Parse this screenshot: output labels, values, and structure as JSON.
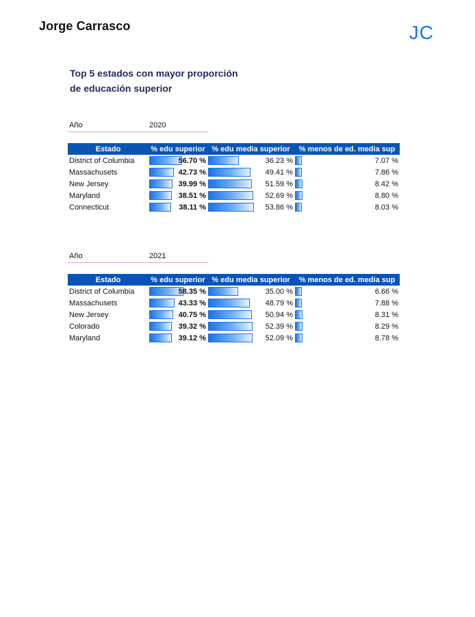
{
  "header": {
    "author": "Jorge Carrasco",
    "logo": "JC",
    "title_line1": "Top 5 estados con mayor proporción",
    "title_line2": "de educación superior"
  },
  "colors": {
    "header_bg": "#0a55b4",
    "bar": "#1a73e8",
    "logo": "#1a73e8"
  },
  "tables": [
    {
      "year_label": "Año",
      "year": "2020",
      "columns": [
        "Estado",
        "% edu superior",
        "% edu media superior",
        "% menos de ed. media sup"
      ],
      "rows": [
        {
          "state": "District of Columbia",
          "edu_sup": "56.70 %",
          "edu_sup_value": 56.7,
          "edu_media": "36.23 %",
          "edu_media_value": 36.23,
          "menos": "7.07 %",
          "menos_value": 7.07
        },
        {
          "state": "Massachusets",
          "edu_sup": "42.73 %",
          "edu_sup_value": 42.73,
          "edu_media": "49.41 %",
          "edu_media_value": 49.41,
          "menos": "7.86 %",
          "menos_value": 7.86
        },
        {
          "state": "New Jersey",
          "edu_sup": "39.99 %",
          "edu_sup_value": 39.99,
          "edu_media": "51.59 %",
          "edu_media_value": 51.59,
          "menos": "8.42 %",
          "menos_value": 8.42
        },
        {
          "state": "Maryland",
          "edu_sup": "38.51 %",
          "edu_sup_value": 38.51,
          "edu_media": "52.69 %",
          "edu_media_value": 52.69,
          "menos": "8.80 %",
          "menos_value": 8.8
        },
        {
          "state": "Connecticut",
          "edu_sup": "38.11 %",
          "edu_sup_value": 38.11,
          "edu_media": "53.86 %",
          "edu_media_value": 53.86,
          "menos": "8.03 %",
          "menos_value": 8.03
        }
      ]
    },
    {
      "year_label": "Año",
      "year": "2021",
      "columns": [
        "Estado",
        "% edu superior",
        "% edu media superior",
        "% menos de ed. media sup"
      ],
      "rows": [
        {
          "state": "District of Columbia",
          "edu_sup": "58.35 %",
          "edu_sup_value": 58.35,
          "edu_media": "35.00 %",
          "edu_media_value": 35.0,
          "menos": "6.66 %",
          "menos_value": 6.66
        },
        {
          "state": "Massachusets",
          "edu_sup": "43.33 %",
          "edu_sup_value": 43.33,
          "edu_media": "48.79 %",
          "edu_media_value": 48.79,
          "menos": "7.88 %",
          "menos_value": 7.88
        },
        {
          "state": "New Jersey",
          "edu_sup": "40.75 %",
          "edu_sup_value": 40.75,
          "edu_media": "50.94 %",
          "edu_media_value": 50.94,
          "menos": "8.31 %",
          "menos_value": 8.31
        },
        {
          "state": "Colorado",
          "edu_sup": "39.32 %",
          "edu_sup_value": 39.32,
          "edu_media": "52.39 %",
          "edu_media_value": 52.39,
          "menos": "8.29 %",
          "menos_value": 8.29
        },
        {
          "state": "Maryland",
          "edu_sup": "39.12 %",
          "edu_sup_value": 39.12,
          "edu_media": "52.09 %",
          "edu_media_value": 52.09,
          "menos": "8.78 %",
          "menos_value": 8.78
        }
      ]
    }
  ]
}
